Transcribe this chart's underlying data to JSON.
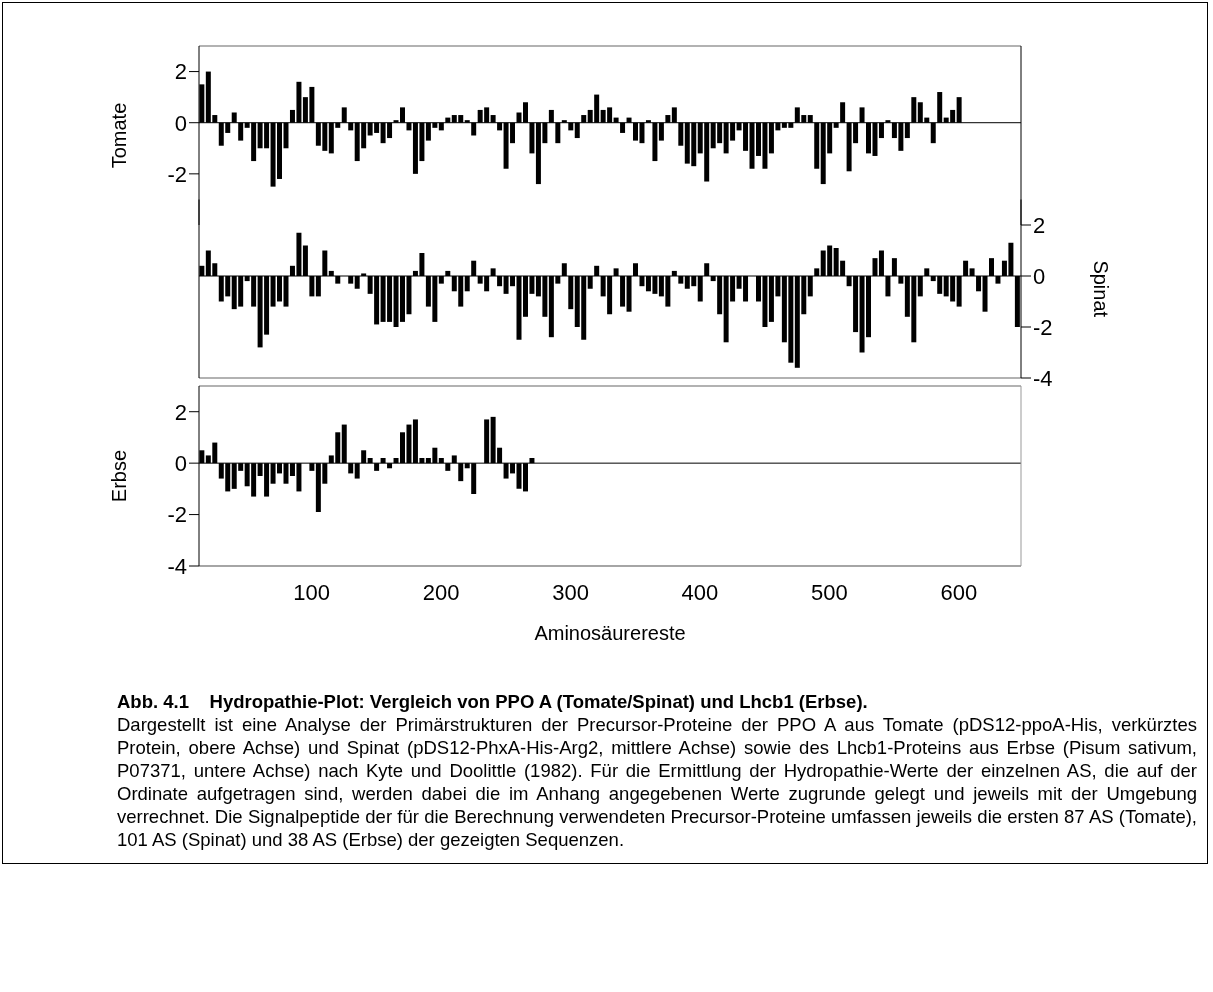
{
  "chart_data": [
    {
      "type": "bar",
      "ylabel": "Tomate",
      "xlim": [
        13,
        648
      ],
      "ylim": [
        -4,
        3
      ],
      "yticks": [
        -2,
        0,
        2
      ],
      "tick_labels": "y",
      "ref_lines": [
        {
          "axis": "y",
          "value": 0,
          "color": "#000000"
        }
      ],
      "series": [
        {
          "color": "#000000",
          "x": [
            15,
            20,
            25,
            30,
            35,
            40,
            45,
            50,
            55,
            60,
            65,
            70,
            75,
            80,
            85,
            90,
            95,
            100,
            105,
            110,
            115,
            120,
            125,
            130,
            135,
            140,
            145,
            150,
            155,
            160,
            165,
            170,
            175,
            180,
            185,
            190,
            195,
            200,
            205,
            210,
            215,
            220,
            225,
            230,
            235,
            240,
            245,
            250,
            255,
            260,
            265,
            270,
            275,
            280,
            285,
            290,
            295,
            300,
            305,
            310,
            315,
            320,
            325,
            330,
            335,
            340,
            345,
            350,
            355,
            360,
            365,
            370,
            375,
            380,
            385,
            390,
            395,
            400,
            405,
            410,
            415,
            420,
            425,
            430,
            435,
            440,
            445,
            450,
            455,
            460,
            465,
            470,
            475,
            480,
            485,
            490,
            495,
            500,
            505,
            510,
            515,
            520,
            525,
            530,
            535,
            540,
            545,
            550,
            555,
            560,
            565,
            570,
            575,
            580,
            585,
            590,
            595,
            600
          ],
          "values": [
            1.5,
            2.0,
            0.3,
            -0.9,
            -0.4,
            0.4,
            -0.7,
            -0.2,
            -1.5,
            -1.0,
            -1.0,
            -2.5,
            -2.2,
            -1.0,
            0.5,
            1.6,
            1.0,
            1.4,
            -0.9,
            -1.1,
            -1.2,
            -0.2,
            0.6,
            -0.3,
            -1.5,
            -1.0,
            -0.5,
            -0.4,
            -0.8,
            -0.6,
            0.1,
            0.6,
            -0.3,
            -2.0,
            -1.5,
            -0.7,
            -0.2,
            -0.3,
            0.2,
            0.3,
            0.3,
            0.1,
            -0.5,
            0.5,
            0.6,
            0.3,
            -0.3,
            -1.8,
            -0.8,
            0.4,
            0.8,
            -1.2,
            -2.4,
            -0.8,
            0.5,
            -0.8,
            0.1,
            -0.3,
            -0.6,
            0.3,
            0.5,
            1.1,
            0.5,
            0.6,
            0.2,
            -0.4,
            0.2,
            -0.7,
            -0.8,
            0.1,
            -1.5,
            -0.7,
            0.3,
            0.6,
            -0.9,
            -1.6,
            -1.7,
            -1.2,
            -2.3,
            -1.0,
            -0.8,
            -1.2,
            -0.7,
            -0.3,
            -1.1,
            -1.8,
            -1.3,
            -1.8,
            -1.2,
            -0.3,
            -0.2,
            -0.2,
            0.6,
            0.3,
            0.3,
            -1.8,
            -2.4,
            -1.2,
            -0.2,
            0.8,
            -1.9,
            -0.8,
            0.6,
            -1.2,
            -1.3,
            -0.6,
            0.1,
            -0.6,
            -1.1,
            -0.6,
            1.0,
            0.8,
            0.2,
            -0.8,
            1.2,
            0.2,
            0.5,
            1.0
          ]
        }
      ]
    },
    {
      "type": "bar",
      "y2label": "Spinat",
      "xlim": [
        13,
        648
      ],
      "y2lim": [
        -4,
        3
      ],
      "y2ticks": [
        -4,
        -2,
        0,
        2
      ],
      "tick_labels": "y",
      "ref_lines": [
        {
          "axis": "y2",
          "value": 0,
          "color": "#000000"
        }
      ],
      "series": [
        {
          "color": "#000000",
          "axis": "y2",
          "x": [
            15,
            20,
            25,
            30,
            35,
            40,
            45,
            50,
            55,
            60,
            65,
            70,
            75,
            80,
            85,
            90,
            95,
            100,
            105,
            110,
            115,
            120,
            125,
            130,
            135,
            140,
            145,
            150,
            155,
            160,
            165,
            170,
            175,
            180,
            185,
            190,
            195,
            200,
            205,
            210,
            215,
            220,
            225,
            230,
            235,
            240,
            245,
            250,
            255,
            260,
            265,
            270,
            275,
            280,
            285,
            290,
            295,
            300,
            305,
            310,
            315,
            320,
            325,
            330,
            335,
            340,
            345,
            350,
            355,
            360,
            365,
            370,
            375,
            380,
            385,
            390,
            395,
            400,
            405,
            410,
            415,
            420,
            425,
            430,
            435,
            440,
            445,
            450,
            455,
            460,
            465,
            470,
            475,
            480,
            485,
            490,
            495,
            500,
            505,
            510,
            515,
            520,
            525,
            530,
            535,
            540,
            545,
            550,
            555,
            560,
            565,
            570,
            575,
            580,
            585,
            590,
            595,
            600,
            605,
            610,
            615,
            620,
            625,
            630,
            635,
            640,
            645
          ],
          "values": [
            0.4,
            1.0,
            0.5,
            -1.0,
            -0.8,
            -1.3,
            -1.2,
            -0.2,
            -1.2,
            -2.8,
            -2.3,
            -1.2,
            -1.0,
            -1.2,
            0.4,
            1.7,
            1.2,
            -0.8,
            -0.8,
            1.0,
            0.2,
            -0.3,
            0.0,
            -0.3,
            -0.5,
            0.1,
            -0.7,
            -1.9,
            -1.8,
            -1.8,
            -2.0,
            -1.8,
            -1.5,
            0.2,
            0.9,
            -1.2,
            -1.8,
            -0.3,
            0.2,
            -0.6,
            -1.2,
            -0.6,
            0.6,
            -0.3,
            -0.6,
            0.3,
            -0.4,
            -0.7,
            -0.4,
            -2.5,
            -1.6,
            -0.7,
            -0.8,
            -1.6,
            -2.4,
            -0.3,
            0.5,
            -1.3,
            -2.0,
            -2.5,
            -0.5,
            0.4,
            -0.8,
            -1.5,
            0.3,
            -1.2,
            -1.4,
            0.5,
            -0.4,
            -0.6,
            -0.7,
            -0.8,
            -1.2,
            0.2,
            -0.3,
            -0.5,
            -0.4,
            -1.0,
            0.5,
            -0.2,
            -1.5,
            -2.6,
            -1.0,
            -0.5,
            -1.0,
            0.0,
            -1.0,
            -2.0,
            -1.8,
            -0.8,
            -2.6,
            -3.4,
            -3.6,
            -1.5,
            -0.8,
            0.3,
            1.0,
            1.2,
            1.1,
            0.6,
            -0.4,
            -2.2,
            -3.0,
            -2.4,
            0.7,
            1.0,
            -0.8,
            0.7,
            -0.3,
            -1.6,
            -2.6,
            -0.8,
            0.3,
            -0.2,
            -0.7,
            -0.8,
            -1.0,
            -1.2,
            0.6,
            0.3,
            -0.6,
            -1.4,
            0.7,
            -0.3,
            0.6,
            1.3,
            -2.0
          ]
        }
      ]
    },
    {
      "type": "bar",
      "title": "Abb. 4.1    Hydropathie-Plot: Vergleich von PPO A (Tomate/Spinat) und Lhcb1 (Erbse).",
      "ylabel": "Erbse",
      "xlabel": "Aminosäurereste",
      "xlim": [
        13,
        648
      ],
      "xticks": [
        100,
        200,
        300,
        400,
        500,
        600
      ],
      "ylim": [
        -4,
        3
      ],
      "yticks": [
        -4,
        -2,
        0,
        2
      ],
      "ref_lines": [
        {
          "axis": "y",
          "value": 0,
          "color": "#000000"
        }
      ],
      "annotations": [
        "Dargestellt ist eine Analyse der Primärstrukturen der Precursor-Proteine der PPO A aus Tomate (pDS12-ppoA-His, verkürztes Protein, obere Achse) und Spinat (pDS12-PhxA-His-Arg2, mittlere Achse) sowie des Lhcb1-Proteins aus Erbse (Pisum sativum, P07371, untere Achse) nach Kyte und Doolittle (1982). Für die Ermittlung der Hydropathie-Werte der einzelnen AS, die auf der Ordinate aufgetragen sind, werden dabei die im Anhang angegebenen Werte zugrunde gelegt und jeweils mit der Umgebung verrechnet. Die Signalpeptide der für die Berechnung verwendeten Precursor-Proteine umfassen jeweils die ersten 87 AS (Tomate), 101 AS (Spinat) und 38 AS (Erbse) der gezeigten Sequenzen."
      ],
      "series": [
        {
          "color": "#000000",
          "x": [
            15,
            20,
            25,
            30,
            35,
            40,
            45,
            50,
            55,
            60,
            65,
            70,
            75,
            80,
            85,
            90,
            95,
            100,
            105,
            110,
            115,
            120,
            125,
            130,
            135,
            140,
            145,
            150,
            155,
            160,
            165,
            170,
            175,
            180,
            185,
            190,
            195,
            200,
            205,
            210,
            215,
            220,
            225,
            230,
            235,
            240,
            245,
            250,
            255,
            260,
            265,
            270
          ],
          "values": [
            0.5,
            0.3,
            0.8,
            -0.6,
            -1.1,
            -1.0,
            -0.3,
            -0.9,
            -1.3,
            -0.5,
            -1.3,
            -0.8,
            -0.4,
            -0.8,
            -0.5,
            -1.1,
            0.0,
            -0.3,
            -1.9,
            -0.8,
            0.3,
            1.2,
            1.5,
            -0.4,
            -0.6,
            0.5,
            0.2,
            -0.3,
            0.2,
            -0.2,
            0.2,
            1.2,
            1.5,
            1.7,
            0.2,
            0.2,
            0.6,
            0.2,
            -0.3,
            0.3,
            -0.7,
            -0.2,
            -1.2,
            0.0,
            1.7,
            1.8,
            0.6,
            -0.6,
            -0.4,
            -1.0,
            -1.1,
            0.2
          ]
        }
      ]
    }
  ]
}
